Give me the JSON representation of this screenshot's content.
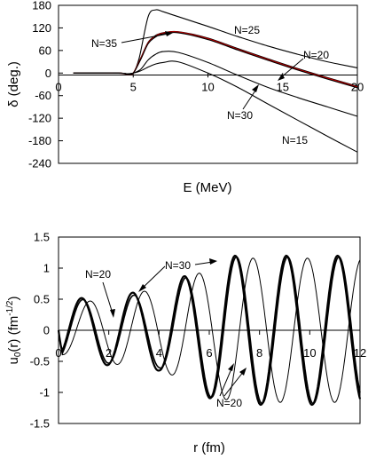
{
  "chart_data": [
    {
      "type": "line",
      "title": "",
      "xlabel": "E (MeV)",
      "ylabel": "δ (deg.)",
      "xlim": [
        0,
        20
      ],
      "ylim": [
        -240,
        180
      ],
      "xticks": [
        0,
        5,
        10,
        15,
        20
      ],
      "yticks": [
        180,
        120,
        60,
        0,
        -60,
        -120,
        -180,
        -240
      ],
      "grid": false,
      "series": [
        {
          "name": "N=25",
          "color": "#000000",
          "x": [
            1,
            4,
            4.6,
            5,
            5.4,
            6,
            6.5,
            7,
            8,
            10,
            12,
            14,
            16,
            18,
            20
          ],
          "y": [
            0,
            0,
            -2,
            0,
            40,
            150,
            168,
            163,
            150,
            124,
            97,
            72,
            50,
            30,
            14
          ]
        },
        {
          "name": "N=35",
          "color": "#000000",
          "x": [
            1,
            4,
            4.6,
            5,
            5.5,
            6,
            6.5,
            7,
            8,
            10,
            12,
            14,
            16,
            18,
            20
          ],
          "y": [
            0,
            0,
            -3,
            0,
            40,
            82,
            100,
            107,
            110,
            93,
            65,
            38,
            12,
            -12,
            -35
          ]
        },
        {
          "name": "",
          "color": "#c00000",
          "x": [
            1,
            4,
            4.6,
            5,
            5.5,
            6,
            6.5,
            7,
            8,
            10,
            12,
            14,
            16,
            18,
            20
          ],
          "y": [
            0,
            0,
            -3,
            0,
            38,
            80,
            98,
            106,
            109,
            91,
            63,
            36,
            10,
            -14,
            -37
          ]
        },
        {
          "name": "N=20",
          "color": "#000000",
          "x": [
            1,
            4,
            4.6,
            5,
            5.5,
            6,
            6.5,
            7,
            8,
            10,
            12,
            14,
            16,
            18,
            20
          ],
          "y": [
            0,
            0,
            -3,
            0,
            36,
            78,
            96,
            104,
            107,
            89,
            61,
            34,
            8,
            -16,
            -39
          ]
        },
        {
          "name": "N=30",
          "color": "#000000",
          "x": [
            1,
            4,
            4.6,
            5,
            5.5,
            6,
            6.5,
            7,
            8,
            10,
            12,
            14,
            16,
            18,
            20
          ],
          "y": [
            0,
            0,
            -2,
            0,
            10,
            35,
            50,
            57,
            55,
            28,
            -6,
            -38,
            -65,
            -90,
            -115
          ]
        },
        {
          "name": "N=15",
          "color": "#000000",
          "x": [
            1,
            4,
            4.6,
            5,
            5.5,
            6,
            6.5,
            7,
            8,
            10,
            12,
            14,
            16,
            18,
            20
          ],
          "y": [
            0,
            0,
            -2,
            0,
            6,
            16,
            24,
            28,
            30,
            0,
            -38,
            -82,
            -125,
            -168,
            -210
          ]
        }
      ],
      "annotations": [
        {
          "text": "N=25"
        },
        {
          "text": "N=35"
        },
        {
          "text": "N=20"
        },
        {
          "text": "N=30"
        },
        {
          "text": "N=15"
        }
      ]
    },
    {
      "type": "line",
      "title": "",
      "xlabel": "r (fm)",
      "ylabel": "u0(r) (fm-1/2)",
      "xlim": [
        0,
        12
      ],
      "ylim": [
        -1.5,
        1.5
      ],
      "xticks": [
        0,
        2,
        4,
        6,
        8,
        10,
        12
      ],
      "yticks": [
        1.5,
        1,
        0.5,
        0,
        -0.5,
        -1,
        -1.5
      ],
      "grid": false,
      "series": [
        {
          "name": "N=20",
          "color": "#000000",
          "width": 2.2,
          "x0": 0.4,
          "k": 3.08,
          "A0": 0.48,
          "A1": 0.65,
          "ramp_end": 4.0,
          "A_end": 1.2,
          "x_max": 12
        },
        {
          "name": "",
          "color": "#000000",
          "width": 1.6,
          "x0": 0.45,
          "k": 3.08,
          "A0": 0.46,
          "A1": 0.6,
          "ramp_end": 4.0,
          "A_end": 1.18,
          "x_max": 12
        },
        {
          "name": "N=30",
          "color": "#000000",
          "width": 1.0,
          "x0": 0.7,
          "k": 2.9,
          "A0": 0.38,
          "A1": 0.7,
          "ramp_end": 4.4,
          "A_end": 1.16,
          "x_max": 12
        }
      ],
      "annotations": [
        {
          "text": "N=20"
        },
        {
          "text": "N=30"
        },
        {
          "text": "N=20"
        }
      ]
    }
  ]
}
